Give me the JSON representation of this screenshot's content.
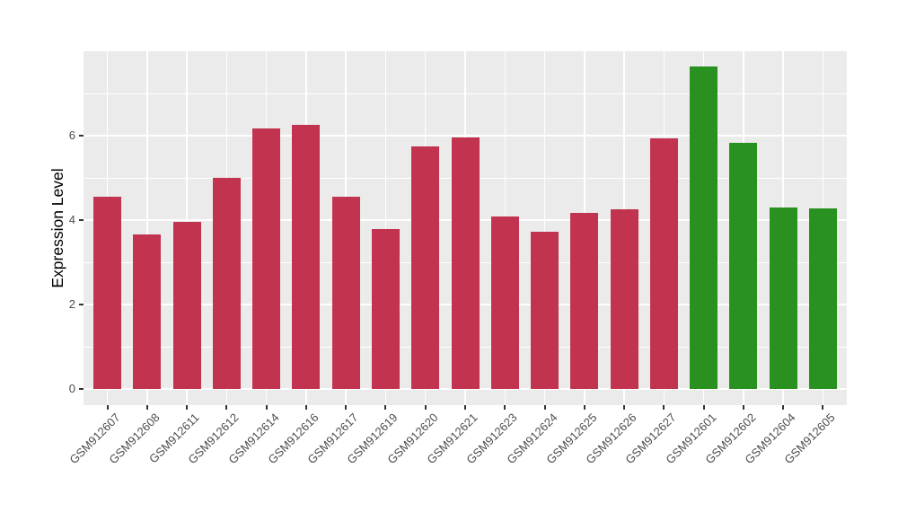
{
  "chart_data": {
    "type": "bar",
    "title": "",
    "xlabel": "",
    "ylabel": "Expression Level",
    "categories": [
      "GSM912607",
      "GSM912608",
      "GSM912611",
      "GSM912612",
      "GSM912614",
      "GSM912616",
      "GSM912617",
      "GSM912619",
      "GSM912620",
      "GSM912621",
      "GSM912623",
      "GSM912624",
      "GSM912625",
      "GSM912626",
      "GSM912627",
      "GSM912601",
      "GSM912602",
      "GSM912604",
      "GSM912605"
    ],
    "values": [
      4.55,
      3.66,
      3.96,
      5.0,
      6.18,
      6.26,
      4.55,
      3.79,
      5.75,
      5.95,
      4.09,
      3.73,
      4.18,
      4.26,
      5.94,
      7.63,
      5.82,
      4.3,
      4.28
    ],
    "bar_colors": [
      "#C23350",
      "#C23350",
      "#C23350",
      "#C23350",
      "#C23350",
      "#C23350",
      "#C23350",
      "#C23350",
      "#C23350",
      "#C23350",
      "#C23350",
      "#C23350",
      "#C23350",
      "#C23350",
      "#C23350",
      "#28911F",
      "#28911F",
      "#28911F",
      "#28911F"
    ],
    "group_colors": {
      "group1": "#C23350",
      "group2": "#28911F"
    },
    "ytick_labels": [
      "0",
      "2",
      "4",
      "6"
    ],
    "ytick_values": [
      0,
      2,
      4,
      6
    ],
    "ytick_minor_values": [
      1,
      3,
      5,
      7
    ],
    "ylim": [
      -0.38,
      8.0
    ],
    "grid": true,
    "legend": false,
    "panel_background": "#EBEBEB",
    "grid_color": "#FFFFFF",
    "tick_color": "#333333",
    "tick_label_color": "#4D4D4D"
  }
}
